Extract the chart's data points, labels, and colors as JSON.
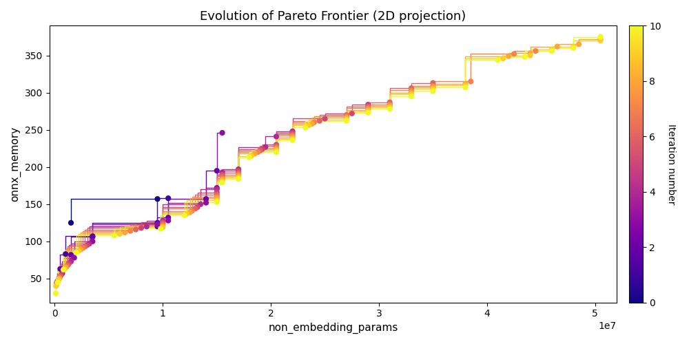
{
  "title": "Evolution of Pareto Frontier (2D projection)",
  "xlabel": "non_embedding_params",
  "ylabel": "onnx_memory",
  "xlim": [
    -500000.0,
    52000000.0
  ],
  "ylim": [
    18,
    390
  ],
  "colorbar_label": "Iteration number",
  "cmap": "plasma",
  "vmin": 0,
  "vmax": 10,
  "figsize": [
    10.0,
    5.0
  ],
  "dpi": 100,
  "pareto_frontiers": [
    {
      "iteration": 0,
      "points": [
        [
          1500000,
          125
        ],
        [
          9500000,
          157
        ]
      ]
    },
    {
      "iteration": 1,
      "points": [
        [
          1000000,
          83
        ],
        [
          3500000,
          107
        ],
        [
          9500000,
          125
        ],
        [
          10500000,
          158
        ]
      ]
    },
    {
      "iteration": 2,
      "points": [
        [
          500000,
          63
        ],
        [
          1500000,
          82
        ],
        [
          3500000,
          106
        ],
        [
          9500000,
          120
        ],
        [
          10500000,
          132
        ],
        [
          14000000,
          157
        ],
        [
          15000000,
          195
        ]
      ]
    },
    {
      "iteration": 3,
      "points": [
        [
          300000,
          47
        ],
        [
          800000,
          62
        ],
        [
          1800000,
          78
        ],
        [
          3500000,
          100
        ],
        [
          9500000,
          123
        ],
        [
          10500000,
          128
        ],
        [
          14000000,
          152
        ],
        [
          15000000,
          172
        ],
        [
          15500000,
          246
        ]
      ]
    },
    {
      "iteration": 4,
      "points": [
        [
          250000,
          46
        ],
        [
          700000,
          57
        ],
        [
          1500000,
          73
        ],
        [
          3200000,
          97
        ],
        [
          8500000,
          120
        ],
        [
          10000000,
          128
        ],
        [
          13500000,
          150
        ],
        [
          15000000,
          170
        ],
        [
          15500000,
          193
        ],
        [
          17000000,
          197
        ],
        [
          19500000,
          227
        ],
        [
          20500000,
          241
        ],
        [
          22000000,
          248
        ]
      ]
    },
    {
      "iteration": 5,
      "points": [
        [
          200000,
          45
        ],
        [
          600000,
          55
        ],
        [
          1300000,
          70
        ],
        [
          3000000,
          95
        ],
        [
          8000000,
          118
        ],
        [
          10000000,
          126
        ],
        [
          13200000,
          146
        ],
        [
          15000000,
          166
        ],
        [
          15500000,
          190
        ],
        [
          17000000,
          195
        ],
        [
          19200000,
          224
        ],
        [
          20500000,
          230
        ],
        [
          22000000,
          246
        ],
        [
          25000000,
          265
        ],
        [
          27500000,
          272
        ],
        [
          29000000,
          284
        ]
      ]
    },
    {
      "iteration": 6,
      "points": [
        [
          180000,
          44
        ],
        [
          500000,
          53
        ],
        [
          1200000,
          68
        ],
        [
          2800000,
          93
        ],
        [
          7500000,
          116
        ],
        [
          10000000,
          124
        ],
        [
          13000000,
          144
        ],
        [
          15000000,
          163
        ],
        [
          15500000,
          188
        ],
        [
          17000000,
          192
        ],
        [
          19000000,
          222
        ],
        [
          20500000,
          228
        ],
        [
          22000000,
          244
        ],
        [
          24500000,
          262
        ],
        [
          27000000,
          270
        ],
        [
          29000000,
          281
        ],
        [
          31000000,
          287
        ],
        [
          33000000,
          306
        ],
        [
          35000000,
          313
        ]
      ]
    },
    {
      "iteration": 7,
      "points": [
        [
          160000,
          43
        ],
        [
          450000,
          51
        ],
        [
          1100000,
          66
        ],
        [
          2600000,
          91
        ],
        [
          7000000,
          114
        ],
        [
          10000000,
          122
        ],
        [
          12700000,
          141
        ],
        [
          15000000,
          160
        ],
        [
          15500000,
          185
        ],
        [
          17000000,
          190
        ],
        [
          18800000,
          220
        ],
        [
          20500000,
          226
        ],
        [
          22000000,
          242
        ],
        [
          24000000,
          260
        ],
        [
          27000000,
          268
        ],
        [
          29000000,
          279
        ],
        [
          31000000,
          284
        ],
        [
          33000000,
          303
        ],
        [
          35000000,
          309
        ],
        [
          38500000,
          315
        ],
        [
          42500000,
          352
        ],
        [
          44500000,
          356
        ]
      ]
    },
    {
      "iteration": 8,
      "points": [
        [
          140000,
          41
        ],
        [
          400000,
          50
        ],
        [
          1000000,
          65
        ],
        [
          2400000,
          89
        ],
        [
          6500000,
          112
        ],
        [
          10000000,
          120
        ],
        [
          12500000,
          139
        ],
        [
          15000000,
          158
        ],
        [
          15500000,
          183
        ],
        [
          17000000,
          188
        ],
        [
          18500000,
          218
        ],
        [
          20500000,
          224
        ],
        [
          22000000,
          240
        ],
        [
          23800000,
          258
        ],
        [
          27000000,
          266
        ],
        [
          29000000,
          277
        ],
        [
          31000000,
          282
        ],
        [
          33000000,
          300
        ],
        [
          35000000,
          307
        ],
        [
          38000000,
          312
        ],
        [
          42000000,
          349
        ],
        [
          44000000,
          353
        ],
        [
          46500000,
          362
        ],
        [
          48500000,
          365
        ],
        [
          50500000,
          372
        ]
      ]
    },
    {
      "iteration": 9,
      "points": [
        [
          120000,
          40
        ],
        [
          350000,
          49
        ],
        [
          900000,
          63
        ],
        [
          2200000,
          87
        ],
        [
          6000000,
          110
        ],
        [
          10000000,
          119
        ],
        [
          12200000,
          137
        ],
        [
          15000000,
          155
        ],
        [
          15500000,
          181
        ],
        [
          17000000,
          186
        ],
        [
          18200000,
          215
        ],
        [
          20500000,
          222
        ],
        [
          22000000,
          238
        ],
        [
          23500000,
          256
        ],
        [
          27000000,
          264
        ],
        [
          29000000,
          275
        ],
        [
          31000000,
          280
        ],
        [
          33000000,
          298
        ],
        [
          35000000,
          305
        ],
        [
          38000000,
          310
        ],
        [
          41500000,
          346
        ],
        [
          44000000,
          350
        ],
        [
          46000000,
          358
        ],
        [
          48000000,
          362
        ],
        [
          50500000,
          370
        ]
      ]
    },
    {
      "iteration": 10,
      "points": [
        [
          100000,
          30
        ],
        [
          280000,
          45
        ],
        [
          800000,
          62
        ],
        [
          2000000,
          85
        ],
        [
          5500000,
          108
        ],
        [
          9800000,
          117
        ],
        [
          12000000,
          135
        ],
        [
          15000000,
          153
        ],
        [
          15500000,
          179
        ],
        [
          17000000,
          184
        ],
        [
          18000000,
          213
        ],
        [
          20500000,
          220
        ],
        [
          22000000,
          236
        ],
        [
          23200000,
          253
        ],
        [
          27000000,
          262
        ],
        [
          29000000,
          273
        ],
        [
          31000000,
          278
        ],
        [
          33000000,
          295
        ],
        [
          35000000,
          302
        ],
        [
          38000000,
          307
        ],
        [
          41000000,
          344
        ],
        [
          43500000,
          348
        ],
        [
          46000000,
          356
        ],
        [
          48000000,
          360
        ],
        [
          50500000,
          375
        ]
      ]
    }
  ]
}
